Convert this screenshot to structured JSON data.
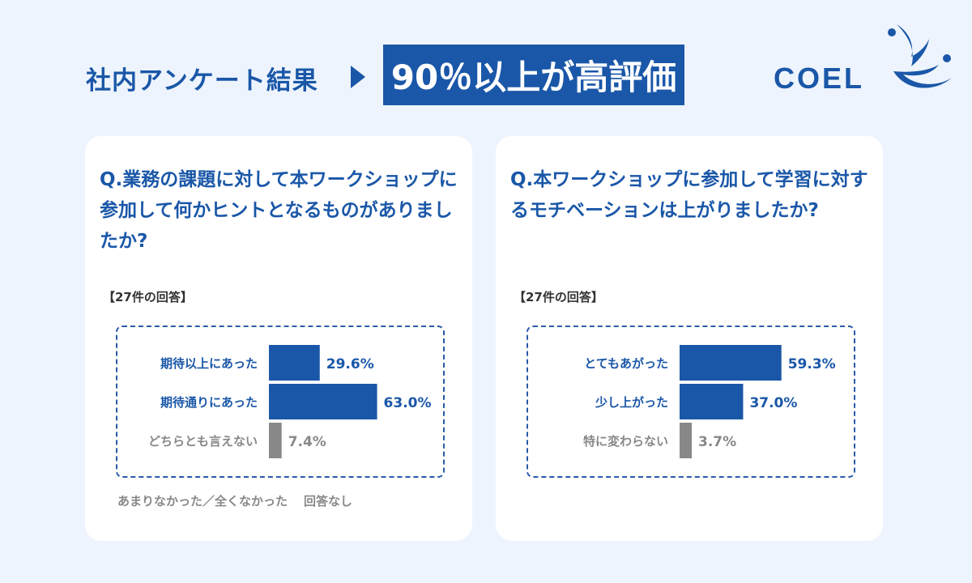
{
  "header": {
    "title": "社内アンケート結果",
    "highlight": "90％以上が高評価"
  },
  "logo": {
    "text": "COEL"
  },
  "colors": {
    "primary": "#1a57a8",
    "gray": "#888888",
    "background": "#eef4fd"
  },
  "cards": [
    {
      "question": "Q.業務の課題に対して本ワークショップに参加して何かヒントとなるものがありましたか?",
      "response_count": "【27件の回答】",
      "footnote_1": "あまりなかった／全くなかった",
      "footnote_2": "回答なし"
    },
    {
      "question": "Q.本ワークショップに参加して学習に対するモチベーションは上がりましたか?",
      "response_count": "【27件の回答】"
    }
  ],
  "chart_data": [
    {
      "type": "bar",
      "orientation": "horizontal",
      "categories": [
        "期待以上にあった",
        "期待通りにあった",
        "どちらとも言えない"
      ],
      "values": [
        29.6,
        63.0,
        7.4
      ],
      "labels": [
        "29.6%",
        "63.0%",
        "7.4%"
      ],
      "colors": [
        "#1a57a8",
        "#1a57a8",
        "#888888"
      ],
      "xlim": [
        0,
        100
      ],
      "grid": false
    },
    {
      "type": "bar",
      "orientation": "horizontal",
      "categories": [
        "とてもあがった",
        "少し上がった",
        "特に変わらない"
      ],
      "values": [
        59.3,
        37.0,
        3.7
      ],
      "labels": [
        "59.3%",
        "37.0%",
        "3.7%"
      ],
      "colors": [
        "#1a57a8",
        "#1a57a8",
        "#888888"
      ],
      "xlim": [
        0,
        100
      ],
      "grid": false
    }
  ]
}
